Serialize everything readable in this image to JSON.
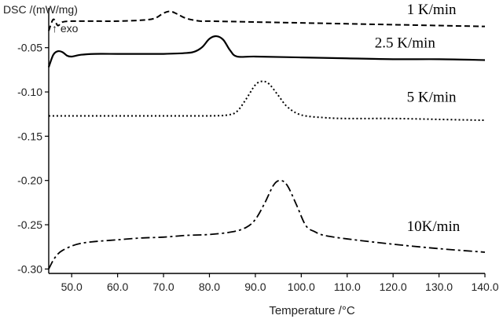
{
  "chart_data": {
    "type": "line",
    "ylabel": "DSC /(mW/mg)",
    "ylabel_sub": "↑ exo",
    "xlabel": "Temperature /°C",
    "xlim": [
      45.0,
      140.0
    ],
    "ylim": [
      -0.305,
      -0.005
    ],
    "x_ticks": [
      "50.0",
      "60.0",
      "70.0",
      "80.0",
      "90.0",
      "100.0",
      "110.0",
      "120.0",
      "130.0",
      "140.0"
    ],
    "x_tick_values": [
      50,
      60,
      70,
      80,
      90,
      100,
      110,
      120,
      130,
      140
    ],
    "y_ticks": [
      "-0.05",
      "-0.10",
      "-0.15",
      "-0.20",
      "-0.25",
      "-0.30"
    ],
    "y_tick_values": [
      -0.05,
      -0.1,
      -0.15,
      -0.2,
      -0.25,
      -0.3
    ],
    "grid": false,
    "series": [
      {
        "name": "1 K/min",
        "style": "dashed",
        "x": [
          45,
          46,
          47,
          48,
          50,
          55,
          60,
          65,
          68,
          70,
          71.5,
          73,
          75,
          78,
          80,
          90,
          100,
          110,
          120,
          130,
          140
        ],
        "y": [
          -0.031,
          -0.018,
          -0.025,
          -0.021,
          -0.02,
          -0.02,
          -0.02,
          -0.019,
          -0.017,
          -0.011,
          -0.009,
          -0.012,
          -0.017,
          -0.02,
          -0.02,
          -0.021,
          -0.022,
          -0.023,
          -0.024,
          -0.025,
          -0.026
        ]
      },
      {
        "name": "2.5 K/min",
        "style": "solid",
        "x": [
          45,
          46,
          47,
          48,
          49,
          50,
          52,
          55,
          60,
          65,
          70,
          75,
          77,
          78.5,
          80,
          81.5,
          83,
          84.5,
          86,
          90,
          100,
          110,
          120,
          130,
          140
        ],
        "y": [
          -0.072,
          -0.058,
          -0.054,
          -0.055,
          -0.059,
          -0.06,
          -0.058,
          -0.057,
          -0.057,
          -0.057,
          -0.057,
          -0.056,
          -0.054,
          -0.049,
          -0.04,
          -0.037,
          -0.041,
          -0.053,
          -0.06,
          -0.06,
          -0.061,
          -0.062,
          -0.063,
          -0.063,
          -0.064
        ]
      },
      {
        "name": "5 K/min",
        "style": "dotted",
        "x": [
          45,
          50,
          60,
          70,
          80,
          84,
          86,
          88,
          90,
          91.5,
          93,
          95,
          97,
          100,
          105,
          110,
          120,
          130,
          140
        ],
        "y": [
          -0.127,
          -0.127,
          -0.127,
          -0.127,
          -0.127,
          -0.126,
          -0.122,
          -0.108,
          -0.092,
          -0.088,
          -0.091,
          -0.104,
          -0.117,
          -0.126,
          -0.129,
          -0.13,
          -0.13,
          -0.131,
          -0.132
        ]
      },
      {
        "name": "10K/min",
        "style": "dashdot",
        "x": [
          45,
          46,
          47,
          48,
          50,
          52,
          55,
          60,
          65,
          70,
          75,
          80,
          85,
          88,
          90,
          92,
          94,
          95.5,
          97,
          99,
          101,
          103,
          105,
          110,
          120,
          130,
          140
        ],
        "y": [
          -0.3,
          -0.29,
          -0.283,
          -0.279,
          -0.274,
          -0.271,
          -0.269,
          -0.267,
          -0.265,
          -0.264,
          -0.262,
          -0.261,
          -0.258,
          -0.253,
          -0.244,
          -0.226,
          -0.205,
          -0.2,
          -0.206,
          -0.228,
          -0.251,
          -0.258,
          -0.262,
          -0.266,
          -0.272,
          -0.277,
          -0.281
        ]
      }
    ],
    "labels": [
      {
        "text": "1 K/min",
        "x": 123.0,
        "y": -0.012
      },
      {
        "text": "2.5 K/min",
        "x": 116.0,
        "y": -0.05
      },
      {
        "text": "5 K/min",
        "x": 123.0,
        "y": -0.111
      },
      {
        "text": "10K/min",
        "x": 123.0,
        "y": -0.257
      }
    ]
  }
}
